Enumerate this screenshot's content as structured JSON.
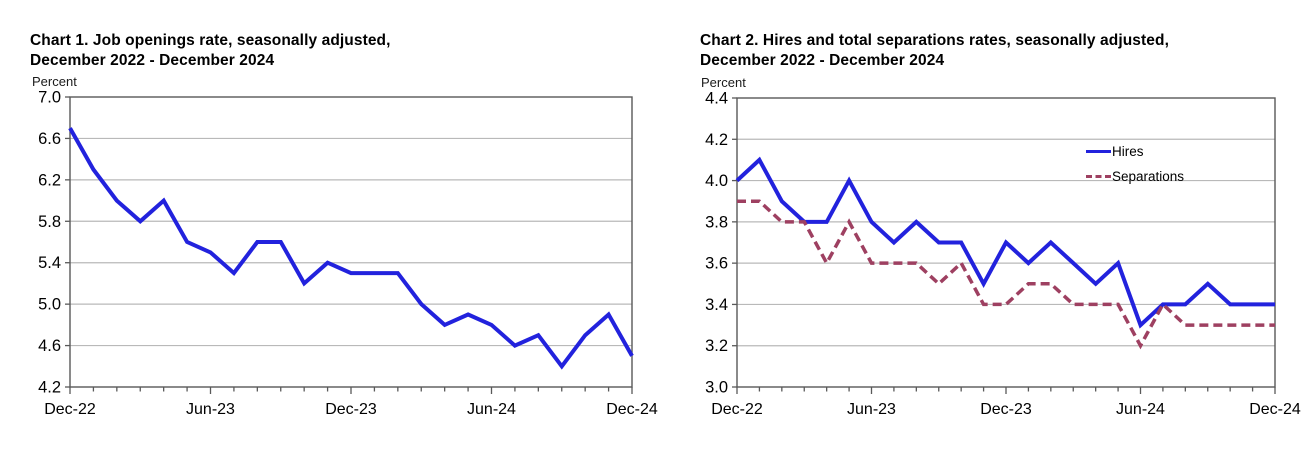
{
  "page": {
    "background_color": "#ffffff",
    "axis_color": "#595959",
    "grid_color": "#b9b9b9"
  },
  "chart_data": [
    {
      "type": "line",
      "title_line1": "Chart 1. Job openings rate, seasonally adjusted,",
      "title_line2": "December 2022 - December 2024",
      "y_axis_unit": "Percent",
      "ylim": [
        4.2,
        7.0
      ],
      "y_step": 0.4,
      "y_tick_labels": [
        "7.0",
        "6.6",
        "6.2",
        "5.8",
        "5.4",
        "5.0",
        "4.6",
        "4.2"
      ],
      "x_axis_tick_labels": [
        "Dec-22",
        "Jun-23",
        "Dec-23",
        "Jun-24",
        "Dec-24"
      ],
      "grid": true,
      "legend": null,
      "categories": [
        "Dec-22",
        "Jan-23",
        "Feb-23",
        "Mar-23",
        "Apr-23",
        "May-23",
        "Jun-23",
        "Jul-23",
        "Aug-23",
        "Sep-23",
        "Oct-23",
        "Nov-23",
        "Dec-23",
        "Jan-24",
        "Feb-24",
        "Mar-24",
        "Apr-24",
        "May-24",
        "Jun-24",
        "Jul-24",
        "Aug-24",
        "Sep-24",
        "Oct-24",
        "Nov-24",
        "Dec-24"
      ],
      "series": [
        {
          "name": "Job openings rate",
          "color": "#2222dd",
          "line_style": "solid",
          "line_width": 4,
          "values": [
            6.7,
            6.3,
            6.0,
            5.8,
            6.0,
            5.6,
            5.5,
            5.3,
            5.6,
            5.6,
            5.2,
            5.4,
            5.3,
            5.3,
            5.3,
            5.0,
            4.8,
            4.9,
            4.8,
            4.6,
            4.7,
            4.4,
            4.7,
            4.9,
            4.5
          ]
        }
      ]
    },
    {
      "type": "line",
      "title_line1": "Chart 2. Hires and total separations rates, seasonally adjusted,",
      "title_line2": "December 2022 - December 2024",
      "y_axis_unit": "Percent",
      "ylim": [
        3.0,
        4.4
      ],
      "y_step": 0.2,
      "y_tick_labels": [
        "4.4",
        "4.2",
        "4.0",
        "3.8",
        "3.6",
        "3.4",
        "3.2",
        "3.0"
      ],
      "x_axis_tick_labels": [
        "Dec-22",
        "Jun-23",
        "Dec-23",
        "Jun-24",
        "Dec-24"
      ],
      "grid": true,
      "legend": {
        "position": "top-right-inside",
        "entries": [
          "Hires",
          "Separations"
        ]
      },
      "categories": [
        "Dec-22",
        "Jan-23",
        "Feb-23",
        "Mar-23",
        "Apr-23",
        "May-23",
        "Jun-23",
        "Jul-23",
        "Aug-23",
        "Sep-23",
        "Oct-23",
        "Nov-23",
        "Dec-23",
        "Jan-24",
        "Feb-24",
        "Mar-24",
        "Apr-24",
        "May-24",
        "Jun-24",
        "Jul-24",
        "Aug-24",
        "Sep-24",
        "Oct-24",
        "Nov-24",
        "Dec-24"
      ],
      "series": [
        {
          "name": "Hires",
          "color": "#2222dd",
          "line_style": "solid",
          "line_width": 4,
          "values": [
            4.0,
            4.1,
            3.9,
            3.8,
            3.8,
            4.0,
            3.8,
            3.7,
            3.8,
            3.7,
            3.7,
            3.5,
            3.7,
            3.6,
            3.7,
            3.6,
            3.5,
            3.6,
            3.3,
            3.4,
            3.4,
            3.5,
            3.4,
            3.4,
            3.4
          ]
        },
        {
          "name": "Separations",
          "color": "#9e4061",
          "line_style": "dashed",
          "line_width": 3.5,
          "values": [
            3.9,
            3.9,
            3.8,
            3.8,
            3.6,
            3.8,
            3.6,
            3.6,
            3.6,
            3.5,
            3.6,
            3.4,
            3.4,
            3.5,
            3.5,
            3.4,
            3.4,
            3.4,
            3.2,
            3.4,
            3.3,
            3.3,
            3.3,
            3.3,
            3.3
          ]
        }
      ]
    }
  ]
}
